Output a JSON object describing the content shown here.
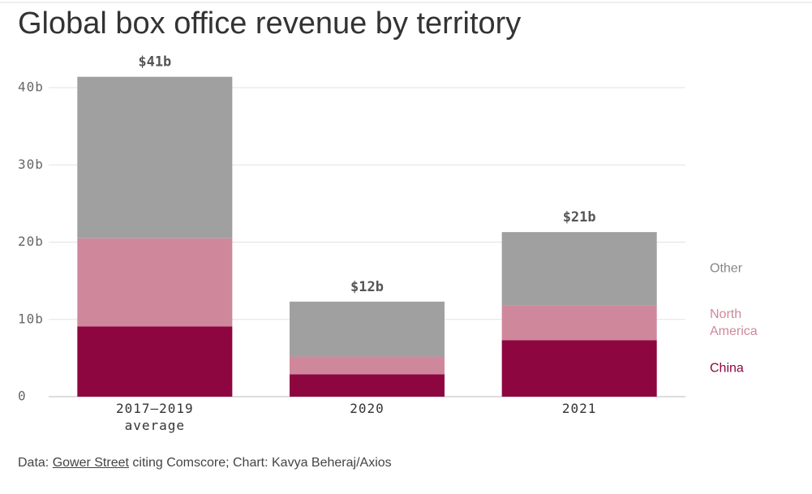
{
  "chart_data": {
    "type": "stacked_bar",
    "title": "Global box office revenue by territory",
    "categories": [
      "2017–2019 average",
      "2020",
      "2021"
    ],
    "series": [
      {
        "name": "China",
        "color": "#8e0640",
        "values": [
          9.1,
          2.9,
          7.3
        ]
      },
      {
        "name": "North America",
        "color": "#cf889b",
        "values": [
          11.4,
          2.3,
          4.5
        ]
      },
      {
        "name": "Other",
        "color": "#a0a0a0",
        "values": [
          20.9,
          7.1,
          9.5
        ]
      }
    ],
    "totals": {
      "values": [
        41.4,
        12.3,
        21.3
      ],
      "value_labels": [
        "$41b",
        "$12b",
        "$21b"
      ]
    },
    "ylim": [
      0,
      40
    ],
    "yticks": [
      0,
      {
        "value": 10,
        "label": "10b"
      },
      {
        "value": 20,
        "label": "20b"
      },
      {
        "value": 30,
        "label": "30b"
      },
      {
        "value": 40,
        "label": "40b"
      }
    ],
    "grid": true,
    "legend": "right",
    "source": {
      "prefix": "Data: ",
      "link": "Gower Street",
      "suffix": " citing Comscore; Chart: Kavya Beheraj/Axios"
    }
  }
}
